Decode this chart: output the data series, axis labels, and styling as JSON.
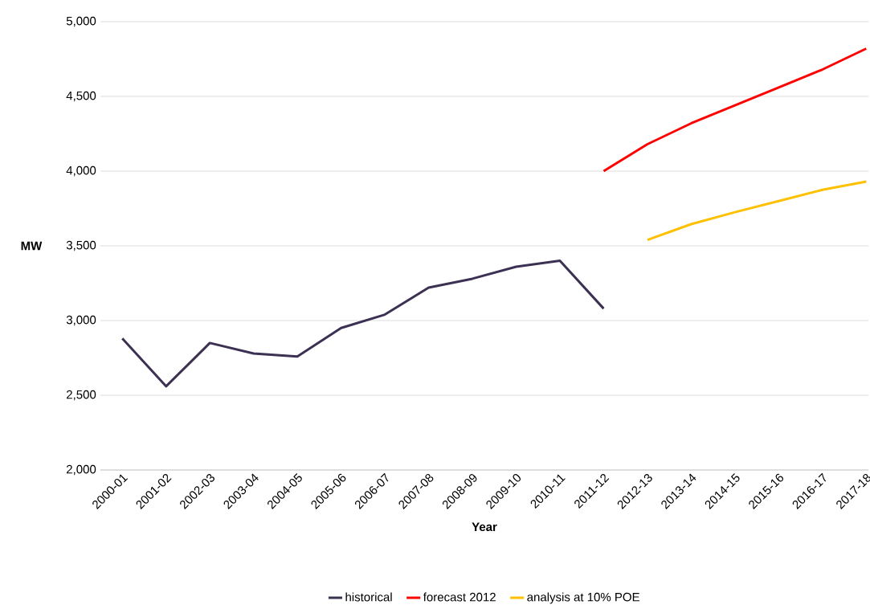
{
  "chart_data": {
    "type": "line",
    "xlabel": "Year",
    "ylabel": "MW",
    "categories": [
      "2000-01",
      "2001-02",
      "2002-03",
      "2003-04",
      "2004-05",
      "2005-06",
      "2006-07",
      "2007-08",
      "2008-09",
      "2009-10",
      "2010-11",
      "2011-12",
      "2012-13",
      "2013-14",
      "2014-15",
      "2015-16",
      "2016-17",
      "2017-18"
    ],
    "series": [
      {
        "name": "historical",
        "color": "#3d3153",
        "values": [
          2880,
          2560,
          2850,
          2780,
          2760,
          2950,
          3040,
          3220,
          3280,
          3360,
          3400,
          3080,
          null,
          null,
          null,
          null,
          null,
          null
        ]
      },
      {
        "name": "forecast 2012",
        "color": "#ff0000",
        "values": [
          null,
          null,
          null,
          null,
          null,
          null,
          null,
          null,
          null,
          null,
          null,
          4000,
          4180,
          4320,
          4440,
          4560,
          4680,
          4820
        ]
      },
      {
        "name": "analysis at 10% POE",
        "color": "#ffc000",
        "values": [
          null,
          null,
          null,
          null,
          null,
          null,
          null,
          null,
          null,
          null,
          null,
          null,
          3540,
          3645,
          3725,
          3800,
          3875,
          3930
        ]
      }
    ],
    "ylim": [
      2000,
      5000
    ],
    "yticks": [
      {
        "value": 2000,
        "label": "2,000"
      },
      {
        "value": 2500,
        "label": "2,500"
      },
      {
        "value": 3000,
        "label": "3,000"
      },
      {
        "value": 3500,
        "label": "3,500"
      },
      {
        "value": 4000,
        "label": "4,000"
      },
      {
        "value": 4500,
        "label": "4,500"
      },
      {
        "value": 5000,
        "label": "5,000"
      }
    ],
    "grid": "y",
    "legend": "bottom",
    "line_style": "solid"
  }
}
